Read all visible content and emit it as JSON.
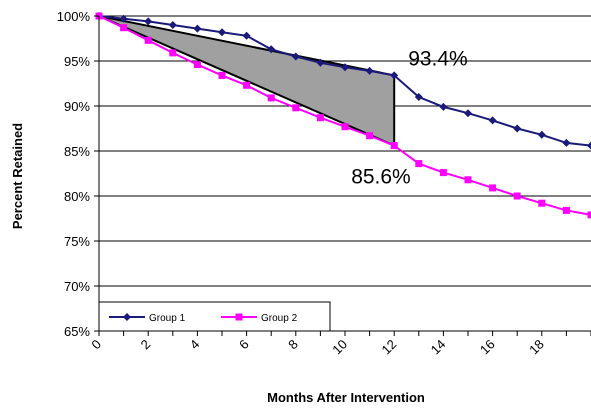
{
  "chart_data": {
    "type": "line",
    "title": "",
    "xlabel": "Months After Intervention",
    "ylabel": "Percent Retained",
    "x": [
      0,
      1,
      2,
      3,
      4,
      5,
      6,
      7,
      8,
      9,
      10,
      11,
      12,
      13,
      14,
      15,
      16,
      17,
      18,
      19,
      20
    ],
    "xticks": [
      0,
      2,
      4,
      6,
      8,
      10,
      12,
      14,
      16,
      18
    ],
    "xlim": [
      0,
      20
    ],
    "yticks": [
      "100%",
      "95%",
      "90%",
      "85%",
      "80%",
      "75%",
      "70%",
      "65%"
    ],
    "ylim": [
      65,
      100
    ],
    "grid": "horizontal",
    "legend_position": "bottom-left",
    "series": [
      {
        "name": "Group 1",
        "color": "#1a1a7a",
        "marker": "diamond",
        "values": [
          100,
          99.7,
          99.4,
          99.0,
          98.6,
          98.2,
          97.8,
          96.3,
          95.5,
          94.8,
          94.3,
          93.9,
          93.4,
          91.0,
          89.9,
          89.2,
          88.4,
          87.5,
          86.8,
          85.9,
          85.6
        ]
      },
      {
        "name": "Group 2",
        "color": "#ff00ff",
        "marker": "square",
        "values": [
          100,
          98.7,
          97.3,
          95.9,
          94.6,
          93.4,
          92.3,
          90.9,
          89.8,
          88.7,
          87.7,
          86.7,
          85.6,
          83.6,
          82.6,
          81.8,
          80.9,
          80.0,
          79.2,
          78.4,
          77.9
        ]
      }
    ],
    "shaded_region": {
      "x_start": 0,
      "x_end": 12,
      "top": 93.4,
      "bottom": 85.6,
      "fill": "#a0a0a0"
    },
    "annotations": [
      {
        "text": "93.4%",
        "x": 12,
        "y": 93.4,
        "anchor": "upper-right"
      },
      {
        "text": "85.6%",
        "x": 12,
        "y": 85.6,
        "anchor": "lower-left"
      }
    ]
  }
}
